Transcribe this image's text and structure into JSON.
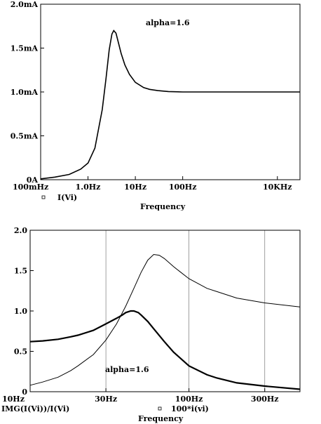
{
  "chart_data": [
    {
      "type": "line",
      "xscale": "log",
      "xlim": [
        0.1,
        30000
      ],
      "ylim": [
        0,
        2.0
      ],
      "xticks": [
        0.1,
        1,
        10,
        100,
        10000
      ],
      "xtick_labels": [
        "100mHz",
        "1.0Hz",
        "10Hz",
        "100Hz",
        "10KHz"
      ],
      "yticks": [
        0,
        0.5,
        1.0,
        1.5,
        2.0
      ],
      "ytick_labels": [
        "0A",
        "0.5mA",
        "1.0mA",
        "1.5mA",
        "2.0mA"
      ],
      "xlabel": "Frequency",
      "grid": false,
      "annotation": "alpha=1.6",
      "legend": [
        {
          "marker": "square",
          "label": "I(Vi)"
        }
      ],
      "series": [
        {
          "label": "I(Vi)",
          "unit": "mA",
          "x": [
            0.1,
            0.2,
            0.4,
            0.7,
            1.0,
            1.4,
            2.0,
            2.4,
            2.8,
            3.2,
            3.5,
            3.9,
            4.4,
            5.0,
            6.0,
            7.5,
            10,
            15,
            20,
            30,
            50,
            100,
            1000,
            30000
          ],
          "y": [
            0.01,
            0.03,
            0.06,
            0.12,
            0.19,
            0.36,
            0.8,
            1.15,
            1.48,
            1.66,
            1.7,
            1.67,
            1.56,
            1.44,
            1.31,
            1.2,
            1.11,
            1.05,
            1.03,
            1.015,
            1.005,
            1.0,
            1.0,
            1.0
          ]
        }
      ]
    },
    {
      "type": "line",
      "xscale": "log",
      "xlim": [
        10,
        500
      ],
      "ylim": [
        0,
        2.0
      ],
      "xticks": [
        10,
        30,
        100,
        300
      ],
      "xtick_labels": [
        "10Hz",
        "30Hz",
        "100Hz",
        "300Hz"
      ],
      "yticks": [
        0,
        0.5,
        1.0,
        1.5,
        2.0
      ],
      "ytick_labels": [
        "0",
        "0.5",
        "1.0",
        "1.5",
        "2.0"
      ],
      "xlabel": "Frequency",
      "grid": true,
      "annotation": "alpha=1.6",
      "legend": [
        {
          "marker": "none",
          "label": "IMG(I(Vi))/I(Vi)"
        },
        {
          "marker": "square",
          "label": "100*i(vi)"
        }
      ],
      "series": [
        {
          "label": "IMG(I(Vi))/I(Vi)",
          "style": "thick",
          "x": [
            10,
            12,
            15,
            18,
            20,
            25,
            30,
            35,
            38,
            40,
            43,
            45,
            48,
            50,
            55,
            60,
            70,
            80,
            100,
            130,
            150,
            200,
            300,
            500
          ],
          "y": [
            0.62,
            0.63,
            0.65,
            0.68,
            0.7,
            0.76,
            0.84,
            0.91,
            0.95,
            0.98,
            1.0,
            1.0,
            0.98,
            0.95,
            0.87,
            0.78,
            0.62,
            0.49,
            0.32,
            0.21,
            0.17,
            0.11,
            0.07,
            0.03
          ]
        },
        {
          "label": "100*i(vi)",
          "style": "thin",
          "x": [
            10,
            12,
            15,
            18,
            20,
            25,
            30,
            35,
            40,
            45,
            50,
            55,
            60,
            65,
            70,
            80,
            100,
            130,
            150,
            200,
            300,
            500
          ],
          "y": [
            0.08,
            0.12,
            0.18,
            0.26,
            0.32,
            0.46,
            0.64,
            0.84,
            1.06,
            1.28,
            1.48,
            1.63,
            1.7,
            1.69,
            1.65,
            1.55,
            1.4,
            1.28,
            1.24,
            1.16,
            1.1,
            1.05
          ]
        }
      ]
    }
  ]
}
